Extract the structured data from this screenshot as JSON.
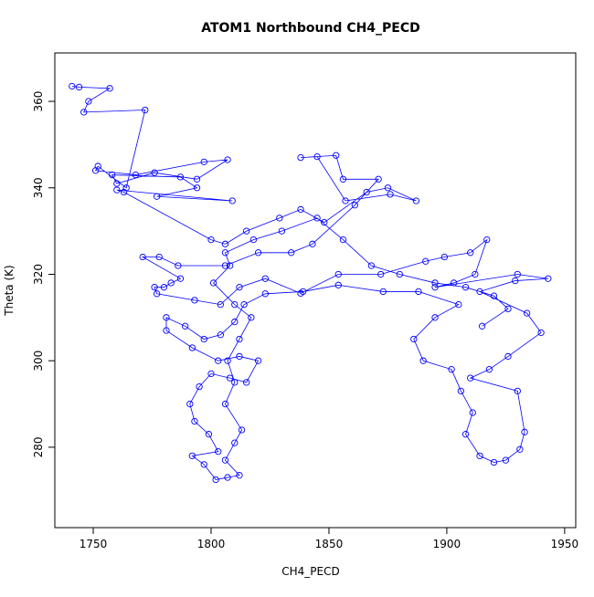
{
  "chart_data": {
    "type": "line",
    "title": "ATOM1 Northbound CH4_PECD",
    "x_label": "CH4_PECD",
    "y_label": "Theta (K)",
    "xlim": [
      1733.7,
      1954.7
    ],
    "ylim": [
      261.4,
      371.2
    ],
    "xticks": [
      1750,
      1800,
      1850,
      1900,
      1950
    ],
    "yticks": [
      280,
      300,
      320,
      340,
      360
    ],
    "series": [
      {
        "color": "#0000ff",
        "markers": true,
        "x": [
          1741,
          1744,
          1757,
          1748,
          1746,
          1772,
          1764,
          1752,
          1751,
          1768,
          1797,
          1807,
          1794,
          1776,
          1760,
          1758,
          1787,
          1794,
          1777,
          1809,
          1760,
          1763,
          1800,
          1806,
          1815,
          1829,
          1838,
          1848,
          1866,
          1875,
          1887,
          1876,
          1857,
          1845,
          1838,
          1853,
          1856,
          1871,
          1861,
          1843,
          1834,
          1820,
          1806,
          1786,
          1778,
          1771,
          1787,
          1783,
          1780,
          1776,
          1777,
          1793,
          1804,
          1812,
          1823,
          1838,
          1854,
          1872,
          1891,
          1899,
          1910,
          1917,
          1912,
          1903,
          1895,
          1930,
          1943,
          1929,
          1914,
          1934,
          1940,
          1926,
          1918,
          1910,
          1930,
          1933,
          1931,
          1925,
          1920,
          1914,
          1908,
          1911,
          1906,
          1902,
          1890,
          1886,
          1895,
          1905,
          1888,
          1873,
          1854,
          1839,
          1823,
          1814,
          1810,
          1804,
          1797,
          1789,
          1781,
          1781,
          1792,
          1803,
          1812,
          1820,
          1815,
          1808,
          1800,
          1795,
          1791,
          1793,
          1799,
          1803,
          1792,
          1797,
          1802,
          1807,
          1812,
          1806,
          1810,
          1813,
          1806,
          1810,
          1807,
          1812,
          1817,
          1810,
          1801,
          1808,
          1806,
          1818,
          1830,
          1845,
          1856,
          1868,
          1880,
          1895,
          1908,
          1920,
          1926,
          1915
        ],
        "values": [
          363.5,
          363.3,
          363,
          360,
          357.5,
          358,
          340,
          345,
          344,
          343,
          346,
          346.5,
          342,
          343.5,
          341,
          343,
          342.5,
          340,
          338,
          337,
          339.5,
          339,
          328,
          327,
          330,
          333,
          335,
          332,
          339,
          340,
          337,
          338.5,
          337,
          347.2,
          347,
          347.5,
          342,
          342,
          336,
          327,
          325,
          325,
          322,
          322,
          324,
          324,
          319,
          318,
          317,
          317,
          315.5,
          314,
          313,
          317,
          319,
          315.6,
          320,
          320,
          323,
          324,
          325,
          328,
          320,
          318,
          317,
          320,
          319,
          318.5,
          316,
          311,
          306.5,
          301,
          298,
          296,
          293,
          283.5,
          279.5,
          277,
          276.5,
          278,
          283,
          288,
          293,
          298,
          300,
          305,
          310,
          313,
          316,
          316,
          317.5,
          316,
          315.5,
          313,
          309,
          306,
          305,
          308,
          310,
          307,
          303,
          300,
          301,
          300,
          295,
          296,
          297,
          294,
          290,
          286,
          283,
          279,
          278,
          276,
          272.5,
          273,
          273.5,
          277,
          281,
          284,
          290,
          295,
          300,
          305,
          310,
          313,
          318,
          322,
          325,
          328,
          330,
          333,
          328,
          322,
          320,
          318,
          317,
          315,
          312,
          308
        ]
      }
    ]
  }
}
